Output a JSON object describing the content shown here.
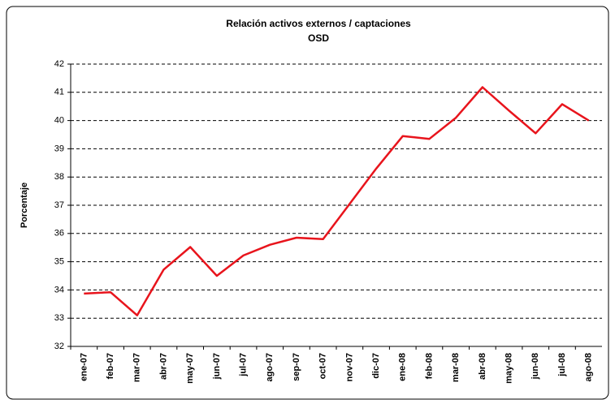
{
  "chart_data": {
    "type": "line",
    "title": "Relación activos externos / captaciones",
    "subtitle": "OSD",
    "y_label": "Porcentaje",
    "categories": [
      "ene-07",
      "feb-07",
      "mar-07",
      "abr-07",
      "may-07",
      "jun-07",
      "jul-07",
      "ago-07",
      "sep-07",
      "oct-07",
      "nov-07",
      "dic-07",
      "ene-08",
      "feb-08",
      "mar-08",
      "abr-08",
      "may-08",
      "jun-08",
      "jul-08",
      "ago-08"
    ],
    "values": [
      33.87,
      33.92,
      33.1,
      34.72,
      35.52,
      34.5,
      35.22,
      35.6,
      35.85,
      35.8,
      37.05,
      38.3,
      39.45,
      39.35,
      40.1,
      41.18,
      40.35,
      39.55,
      40.58,
      40.0
    ],
    "color": "#e8141c",
    "ylim": [
      32,
      42
    ],
    "yticks": [
      32,
      33,
      34,
      35,
      36,
      37,
      38,
      39,
      40,
      41,
      42
    ],
    "grid": true
  }
}
